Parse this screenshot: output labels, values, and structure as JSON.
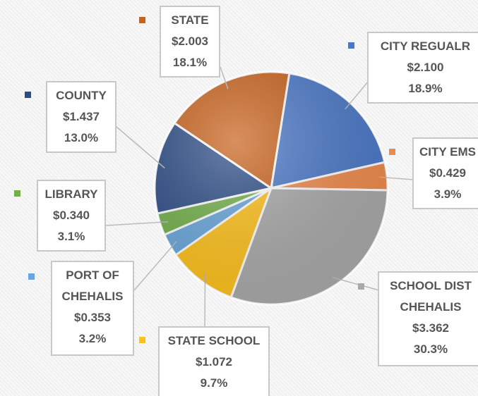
{
  "chart_data": {
    "type": "pie",
    "categories": [
      "CITY REGUALR",
      "CITY EMS",
      "SCHOOL DIST CHEHALIS",
      "STATE SCHOOL",
      "PORT OF CHEHALIS",
      "LIBRARY",
      "COUNTY",
      "STATE"
    ],
    "values": [
      2.1,
      0.429,
      3.362,
      1.072,
      0.353,
      0.34,
      1.437,
      2.003
    ],
    "value_labels": [
      "$2.100",
      "$0.429",
      "$3.362",
      "$1.072",
      "$0.353",
      "$0.340",
      "$1.437",
      "$2.003"
    ],
    "percentages": [
      18.9,
      3.9,
      30.3,
      9.7,
      3.2,
      3.1,
      13.0,
      18.1
    ],
    "percentage_labels": [
      "18.9%",
      "3.9%",
      "30.3%",
      "9.7%",
      "3.2%",
      "3.1%",
      "13.0%",
      "18.1%"
    ],
    "colors": [
      "#4a78c8",
      "#f08a4b",
      "#a9a9a9",
      "#ffc21a",
      "#68a6dc",
      "#72b04a",
      "#2b4c86",
      "#c9611a"
    ]
  }
}
